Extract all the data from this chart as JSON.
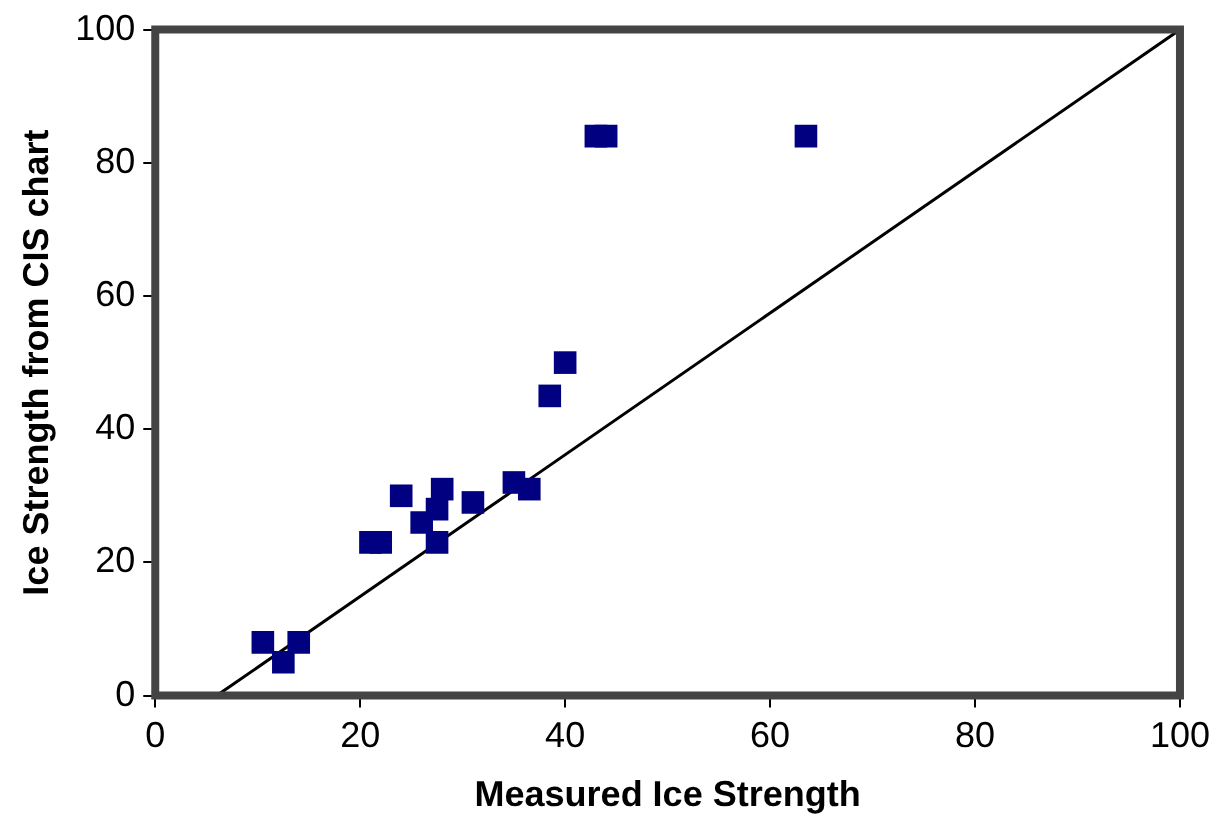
{
  "chart_data": {
    "type": "scatter",
    "xlabel": "Measured Ice Strength",
    "ylabel": "Ice Strength from CIS chart",
    "xlim": [
      0,
      100
    ],
    "xticks": [
      0,
      20,
      40,
      60,
      80,
      100
    ],
    "ylim": [
      0,
      100
    ],
    "yticks": [
      0,
      20,
      40,
      60,
      80,
      100
    ],
    "grid": false,
    "legend": false,
    "marker": "square",
    "series": [
      {
        "color": "#000080",
        "x": [
          10.5,
          12.5,
          14,
          21,
          22,
          24,
          26,
          27.5,
          27.5,
          28,
          31,
          35,
          36.5,
          38.5,
          40,
          43,
          44,
          63.5
        ],
        "values": [
          8,
          5,
          8,
          23,
          23,
          30,
          26,
          23,
          28,
          31,
          29,
          32,
          31,
          45,
          50,
          84,
          84,
          84
        ]
      },
      {
        "type": "line",
        "color": "#000000",
        "marker": "none",
        "x": [
          6,
          100
        ],
        "values": [
          0,
          100
        ]
      }
    ]
  }
}
